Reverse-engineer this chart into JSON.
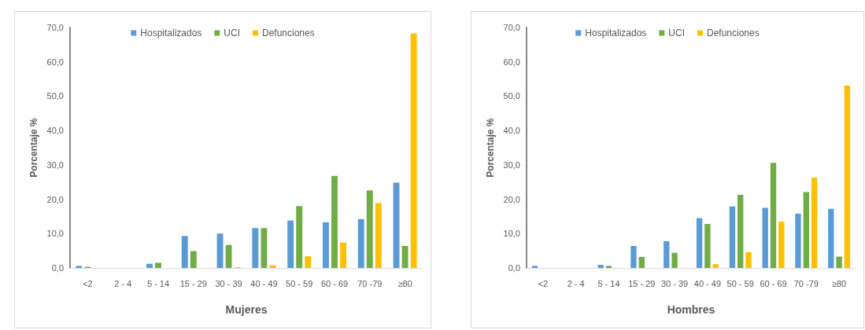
{
  "chart_data": [
    {
      "type": "bar",
      "xlabel": "Mujeres",
      "ylabel": "Porcentaje %",
      "categories": [
        "<2",
        "2 - 4",
        "5 - 14",
        "15 - 29",
        "30 - 39",
        "40 - 49",
        "50 - 59",
        "60 - 69",
        "70 -79",
        "≥80"
      ],
      "series": [
        {
          "name": "Hospitalizados",
          "color": "#5b9bd5",
          "values": [
            0.6,
            0,
            1.2,
            9.3,
            10.0,
            11.6,
            13.8,
            13.3,
            14.2,
            24.8
          ]
        },
        {
          "name": "UCI",
          "color": "#70ad47",
          "values": [
            0.3,
            0,
            1.5,
            4.9,
            6.7,
            11.6,
            18.0,
            26.8,
            22.6,
            6.4
          ]
        },
        {
          "name": "Defunciones",
          "color": "#ffc000",
          "values": [
            0,
            0,
            0,
            0,
            0.2,
            0.8,
            3.4,
            7.4,
            18.9,
            68.3
          ]
        }
      ],
      "ylim": [
        0,
        70
      ],
      "yticks": [
        {
          "value": 0,
          "label": "0,0"
        },
        {
          "value": 10,
          "label": "10,0"
        },
        {
          "value": 20,
          "label": "20,0"
        },
        {
          "value": 30,
          "label": "30,0"
        },
        {
          "value": 40,
          "label": "40,0"
        },
        {
          "value": 50,
          "label": "50,0"
        },
        {
          "value": 60,
          "label": "60,0"
        },
        {
          "value": 70,
          "label": "70,0"
        }
      ],
      "grid": false,
      "legend": "top"
    },
    {
      "type": "bar",
      "xlabel": "Hombres",
      "ylabel": "Porcentaje %",
      "categories": [
        "<2",
        "2 - 4",
        "5 - 14",
        "15 - 29",
        "30 - 39",
        "40 - 49",
        "50 - 59",
        "60 - 69",
        "70 -79",
        "≥80"
      ],
      "series": [
        {
          "name": "Hospitalizados",
          "color": "#5b9bd5",
          "values": [
            0.6,
            0,
            0.9,
            6.4,
            7.8,
            14.5,
            17.9,
            17.5,
            15.8,
            17.2
          ]
        },
        {
          "name": "UCI",
          "color": "#70ad47",
          "values": [
            0,
            0,
            0.6,
            3.2,
            4.4,
            12.8,
            21.3,
            30.6,
            22.1,
            3.3
          ]
        },
        {
          "name": "Defunciones",
          "color": "#ffc000",
          "values": [
            0,
            0,
            0,
            0,
            0,
            1.1,
            4.6,
            13.5,
            26.3,
            53.1
          ]
        }
      ],
      "ylim": [
        0,
        70
      ],
      "yticks": [
        {
          "value": 0,
          "label": "0,0"
        },
        {
          "value": 10,
          "label": "10,0"
        },
        {
          "value": 20,
          "label": "20,0"
        },
        {
          "value": 30,
          "label": "30,0"
        },
        {
          "value": 40,
          "label": "40,0"
        },
        {
          "value": 50,
          "label": "50,0"
        },
        {
          "value": 60,
          "label": "60,0"
        },
        {
          "value": 70,
          "label": "70,0"
        }
      ],
      "grid": false,
      "legend": "top"
    }
  ]
}
